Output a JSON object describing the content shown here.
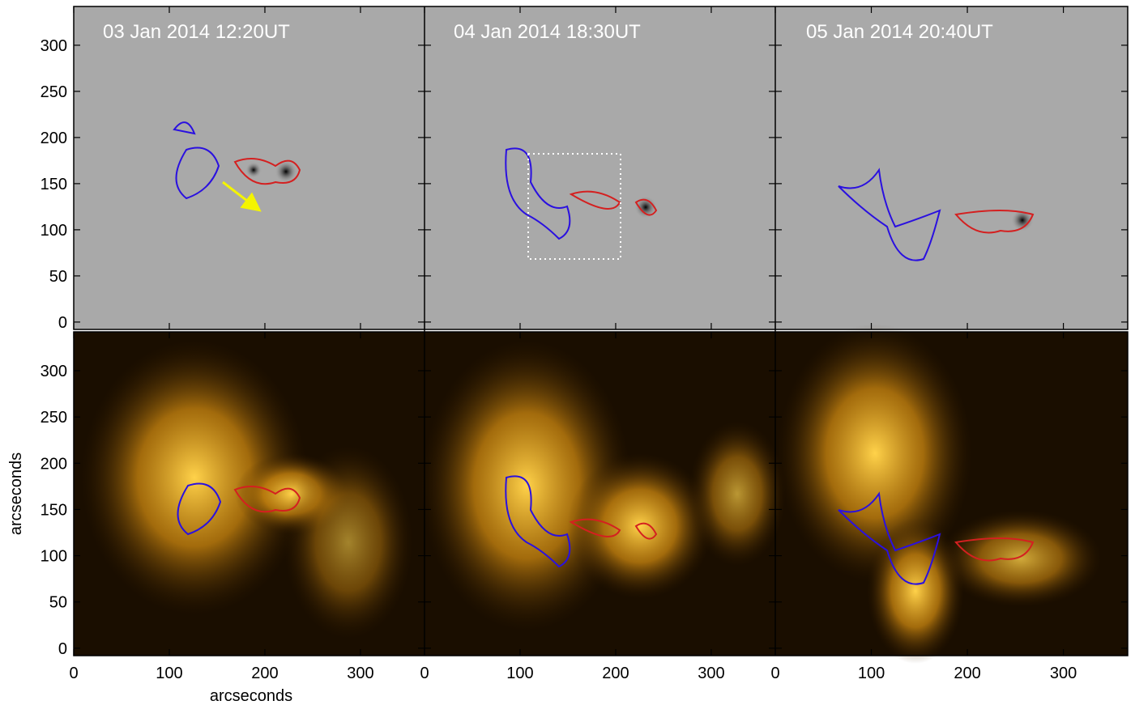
{
  "figure": {
    "panel_titles": [
      "03 Jan 2014 12:20UT",
      "04 Jan 2014 18:30UT",
      "05 Jan 2014 20:40UT"
    ],
    "x_axis": {
      "label": "arcseconds",
      "range": [
        0,
        367
      ],
      "ticks": [
        0,
        100,
        200,
        300
      ]
    },
    "y_axis": {
      "label": "arcseconds",
      "range": [
        -8,
        342
      ],
      "ticks": [
        0,
        50,
        100,
        150,
        200,
        250,
        300
      ]
    }
  }
}
